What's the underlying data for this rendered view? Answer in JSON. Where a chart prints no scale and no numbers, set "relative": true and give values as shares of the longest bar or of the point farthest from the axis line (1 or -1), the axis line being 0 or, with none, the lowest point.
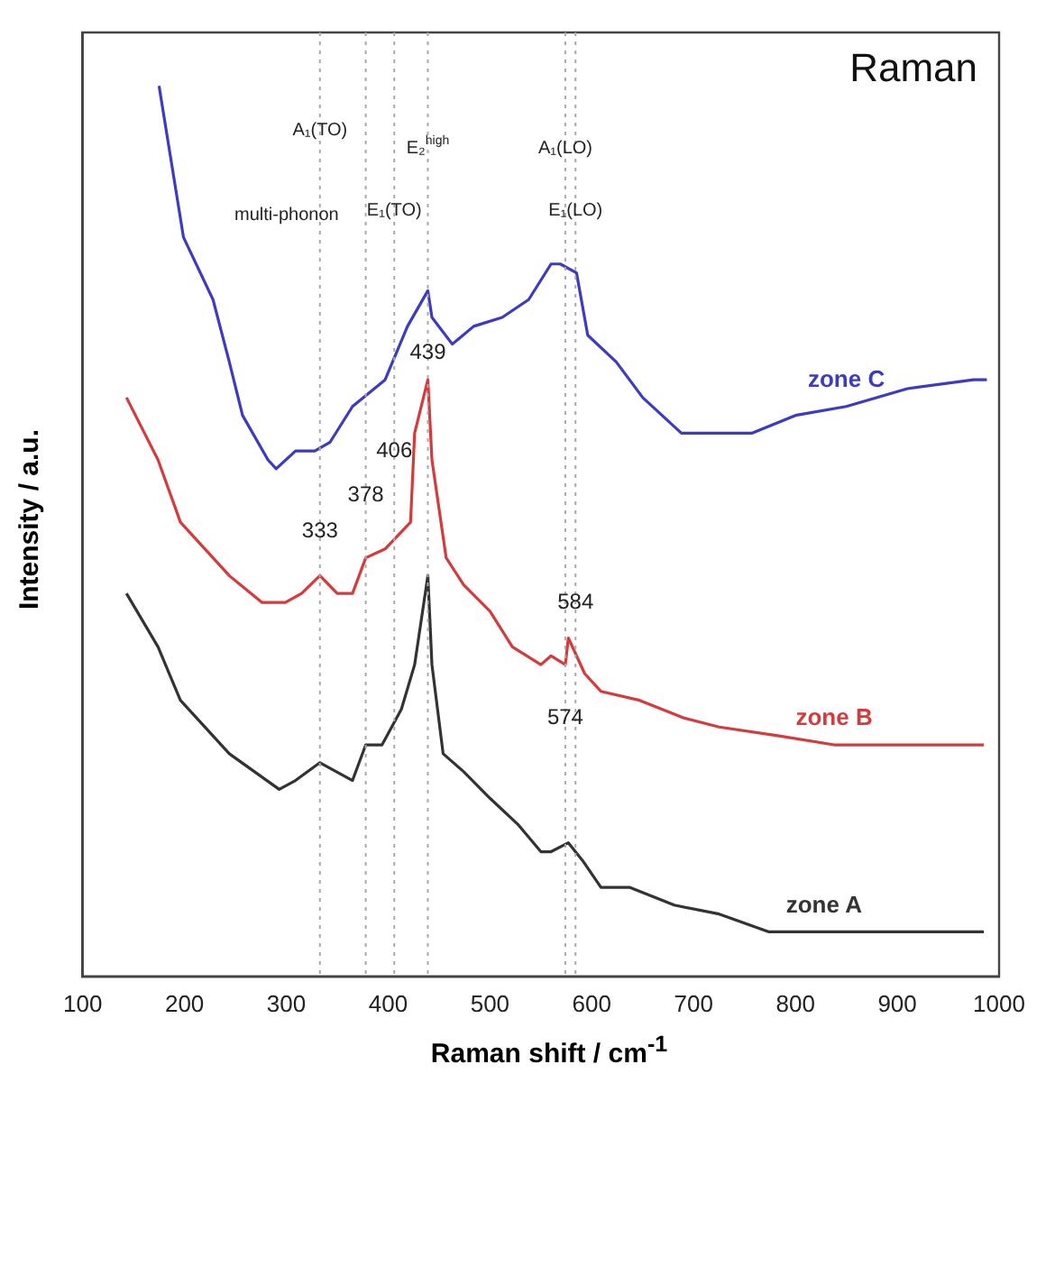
{
  "chart_data": {
    "type": "line",
    "title": "Raman",
    "xlabel": "Raman shift / cm$^{-1}$",
    "ylabel": "Intensity / a.u.",
    "relative": true,
    "xlim": [
      100,
      1000
    ],
    "xticks": [
      100,
      200,
      300,
      400,
      500,
      600,
      700,
      800,
      900,
      1000
    ],
    "grid": false,
    "legend": false,
    "marker": "none",
    "line_style": "solid",
    "series": [
      {
        "name": "zone C",
        "color": "#3b3bc4",
        "x": [
          175,
          199,
          228,
          244,
          257,
          282,
          290,
          309,
          328,
          343,
          365,
          397,
          419,
          439,
          443,
          463,
          484,
          512,
          538,
          560,
          569,
          585,
          596,
          624,
          650,
          688,
          725,
          757,
          800,
          850,
          910,
          975,
          988
        ],
        "values": [
          1.0,
          0.83,
          0.76,
          0.69,
          0.63,
          0.58,
          0.57,
          0.59,
          0.59,
          0.6,
          0.64,
          0.67,
          0.73,
          0.77,
          0.74,
          0.71,
          0.73,
          0.74,
          0.76,
          0.8,
          0.8,
          0.79,
          0.72,
          0.69,
          0.65,
          0.61,
          0.61,
          0.61,
          0.63,
          0.64,
          0.66,
          0.67,
          0.67
        ]
      },
      {
        "name": "zone B",
        "color": "#d63b3b",
        "x": [
          143,
          174,
          196,
          244,
          276,
          299,
          315,
          333,
          350,
          365,
          378,
          397,
          422,
          426,
          439,
          443,
          457,
          474,
          500,
          522,
          550,
          560,
          574,
          577,
          593,
          609,
          647,
          691,
          725,
          784,
          838,
          882,
          921,
          985
        ],
        "values": [
          0.65,
          0.58,
          0.51,
          0.45,
          0.42,
          0.42,
          0.43,
          0.45,
          0.43,
          0.43,
          0.47,
          0.48,
          0.51,
          0.61,
          0.67,
          0.58,
          0.47,
          0.44,
          0.41,
          0.37,
          0.35,
          0.36,
          0.35,
          0.38,
          0.34,
          0.32,
          0.31,
          0.29,
          0.28,
          0.27,
          0.26,
          0.26,
          0.26,
          0.26
        ]
      },
      {
        "name": "zone A",
        "color": "#333333",
        "x": [
          143,
          174,
          196,
          244,
          293,
          309,
          333,
          365,
          378,
          394,
          413,
          426,
          439,
          443,
          454,
          474,
          500,
          528,
          550,
          560,
          577,
          591,
          609,
          637,
          681,
          725,
          774,
          828,
          882,
          947,
          985
        ],
        "values": [
          0.43,
          0.37,
          0.31,
          0.25,
          0.21,
          0.22,
          0.24,
          0.22,
          0.26,
          0.26,
          0.3,
          0.35,
          0.45,
          0.35,
          0.25,
          0.23,
          0.2,
          0.17,
          0.14,
          0.14,
          0.15,
          0.13,
          0.1,
          0.1,
          0.08,
          0.07,
          0.05,
          0.05,
          0.05,
          0.05,
          0.05
        ]
      }
    ],
    "ref_lines": [
      {
        "axis": "x",
        "value": 333,
        "color": "#aaaaaa",
        "line_style": "dotted"
      },
      {
        "axis": "x",
        "value": 378,
        "color": "#aaaaaa",
        "line_style": "dotted"
      },
      {
        "axis": "x",
        "value": 406,
        "color": "#aaaaaa",
        "line_style": "dotted"
      },
      {
        "axis": "x",
        "value": 439,
        "color": "#aaaaaa",
        "line_style": "dotted"
      },
      {
        "axis": "x",
        "value": 574,
        "color": "#aaaaaa",
        "line_style": "dotted"
      },
      {
        "axis": "x",
        "value": 584,
        "color": "#aaaaaa",
        "line_style": "dotted"
      }
    ],
    "annotations": [
      {
        "text": "333",
        "x": 333,
        "y": 0.5
      },
      {
        "text": "378",
        "x": 378,
        "y": 0.54
      },
      {
        "text": "406",
        "x": 406,
        "y": 0.59
      },
      {
        "text": "439",
        "x": 439,
        "y": 0.7
      },
      {
        "text": "574",
        "x": 574,
        "y": 0.29
      },
      {
        "text": "584",
        "x": 584,
        "y": 0.42
      },
      "multi-phonon",
      {
        "text": "A₁(TO)",
        "x": 333,
        "y": 0.95
      },
      {
        "text": "E₁(TO)",
        "x": 406,
        "y": 0.86
      },
      {
        "text": "E₂$^{high}$",
        "x": 439,
        "y": 0.93
      },
      {
        "text": "A₁(LO)",
        "x": 574,
        "y": 0.93
      },
      {
        "text": "E₁(LO)",
        "x": 584,
        "y": 0.86
      }
    ]
  }
}
